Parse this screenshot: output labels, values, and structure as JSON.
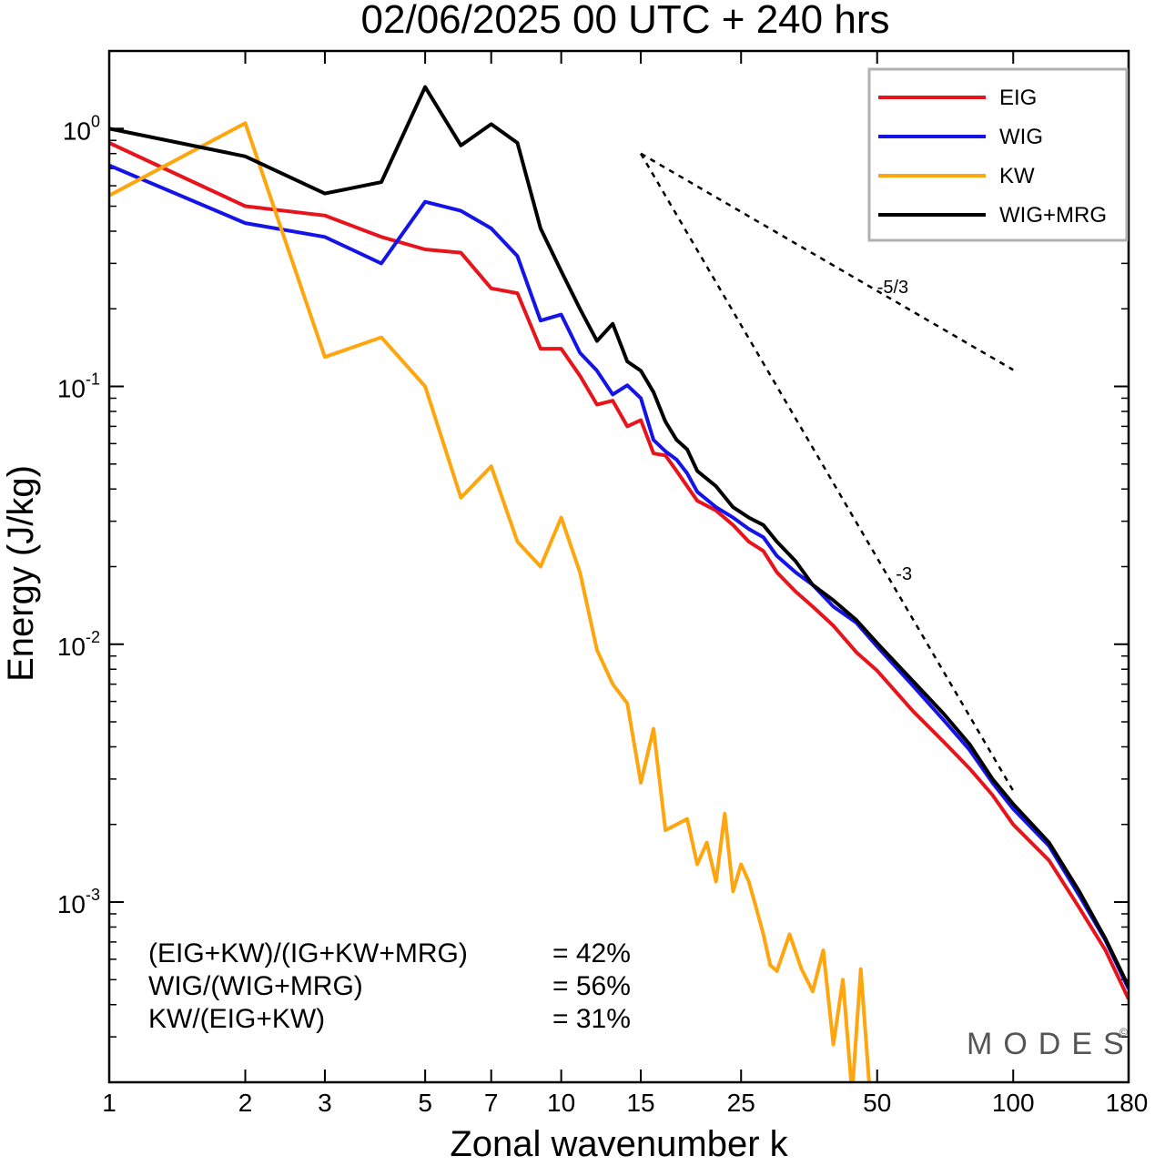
{
  "chart_data": {
    "type": "line",
    "title": "02/06/2025  00 UTC  + 240 hrs",
    "xlabel": "Zonal wavenumber k",
    "ylabel": "Energy (J/kg)",
    "xscale": "log",
    "yscale": "log",
    "xlim": [
      1,
      180
    ],
    "ylim": [
      0.0002,
      2.0
    ],
    "x_ticks": [
      {
        "v": 1,
        "label": "1"
      },
      {
        "v": 2,
        "label": "2"
      },
      {
        "v": 3,
        "label": "3"
      },
      {
        "v": 5,
        "label": "5"
      },
      {
        "v": 7,
        "label": "7"
      },
      {
        "v": 10,
        "label": "10"
      },
      {
        "v": 15,
        "label": "15"
      },
      {
        "v": 25,
        "label": "25"
      },
      {
        "v": 50,
        "label": "50"
      },
      {
        "v": 100,
        "label": "100"
      },
      {
        "v": 180,
        "label": "180"
      }
    ],
    "y_ticks": [
      {
        "v": 1,
        "base": "10",
        "exp": "0"
      },
      {
        "v": 0.1,
        "base": "10",
        "exp": "-1"
      },
      {
        "v": 0.01,
        "base": "10",
        "exp": "-2"
      },
      {
        "v": 0.001,
        "base": "10",
        "exp": "-3"
      }
    ],
    "legend_position": "top-right",
    "series": [
      {
        "name": "EIG",
        "color": "#e8141c",
        "x": [
          1,
          2,
          3,
          4,
          5,
          6,
          7,
          8,
          9,
          10,
          11,
          12,
          13,
          14,
          15,
          16,
          17,
          18,
          19,
          20,
          22,
          24,
          26,
          28,
          30,
          33,
          36,
          40,
          45,
          50,
          60,
          70,
          80,
          90,
          100,
          120,
          140,
          160,
          180
        ],
        "y": [
          0.88,
          0.5,
          0.46,
          0.38,
          0.34,
          0.33,
          0.24,
          0.23,
          0.14,
          0.14,
          0.11,
          0.085,
          0.088,
          0.07,
          0.074,
          0.055,
          0.054,
          0.047,
          0.041,
          0.036,
          0.033,
          0.029,
          0.025,
          0.023,
          0.019,
          0.016,
          0.014,
          0.0118,
          0.0093,
          0.0079,
          0.0055,
          0.0042,
          0.0033,
          0.0026,
          0.002,
          0.00145,
          0.00095,
          0.00065,
          0.00042
        ]
      },
      {
        "name": "WIG",
        "color": "#1414e8",
        "x": [
          1,
          2,
          3,
          4,
          5,
          6,
          7,
          8,
          9,
          10,
          11,
          12,
          13,
          14,
          15,
          16,
          17,
          18,
          19,
          20,
          22,
          24,
          26,
          28,
          30,
          33,
          36,
          40,
          45,
          50,
          60,
          70,
          80,
          90,
          100,
          120,
          140,
          160,
          180
        ],
        "y": [
          0.72,
          0.43,
          0.38,
          0.3,
          0.52,
          0.48,
          0.41,
          0.32,
          0.18,
          0.19,
          0.135,
          0.115,
          0.093,
          0.101,
          0.09,
          0.062,
          0.056,
          0.052,
          0.046,
          0.039,
          0.034,
          0.031,
          0.028,
          0.026,
          0.022,
          0.019,
          0.017,
          0.014,
          0.0121,
          0.0098,
          0.0069,
          0.0051,
          0.0039,
          0.0029,
          0.0023,
          0.00165,
          0.00106,
          0.00071,
          0.00046
        ]
      },
      {
        "name": "KW",
        "color": "#ffa50d",
        "x": [
          1,
          2,
          3,
          4,
          5,
          6,
          7,
          8,
          9,
          10,
          11,
          12,
          13,
          14,
          15,
          16,
          17,
          18,
          19,
          20,
          21,
          22,
          23,
          24,
          25,
          26,
          27,
          28,
          29,
          30,
          32,
          34,
          36,
          38,
          40,
          42,
          44,
          46,
          48,
          50
        ],
        "y": [
          0.55,
          1.05,
          0.13,
          0.155,
          0.1,
          0.037,
          0.049,
          0.025,
          0.02,
          0.031,
          0.019,
          0.0095,
          0.007,
          0.0059,
          0.0029,
          0.0047,
          0.0019,
          0.002,
          0.0021,
          0.0014,
          0.0017,
          0.0012,
          0.0022,
          0.0011,
          0.0014,
          0.0012,
          0.00095,
          0.00075,
          0.00057,
          0.00054,
          0.00075,
          0.00055,
          0.00045,
          0.00065,
          0.00028,
          0.0005,
          0.00018,
          0.00055,
          0.0002,
          0.00014
        ]
      },
      {
        "name": "WIG+MRG",
        "color": "#000000",
        "x": [
          1,
          2,
          3,
          4,
          5,
          6,
          7,
          8,
          9,
          10,
          11,
          12,
          13,
          14,
          15,
          16,
          17,
          18,
          19,
          20,
          22,
          24,
          26,
          28,
          30,
          33,
          36,
          40,
          45,
          50,
          60,
          70,
          80,
          90,
          100,
          120,
          140,
          160,
          180
        ],
        "y": [
          1.0,
          0.78,
          0.56,
          0.62,
          1.45,
          0.86,
          1.04,
          0.88,
          0.41,
          0.28,
          0.2,
          0.15,
          0.175,
          0.125,
          0.115,
          0.095,
          0.073,
          0.062,
          0.057,
          0.047,
          0.041,
          0.034,
          0.031,
          0.029,
          0.025,
          0.021,
          0.017,
          0.0148,
          0.0124,
          0.0101,
          0.0072,
          0.0054,
          0.0041,
          0.003,
          0.0024,
          0.0017,
          0.0011,
          0.00072,
          0.00047
        ]
      }
    ],
    "reference_lines": [
      {
        "label": "-5/3",
        "x": [
          15,
          100
        ],
        "y": [
          0.8,
          0.1159
        ],
        "label_x": 50,
        "label_y": 0.23
      },
      {
        "label": "-3",
        "x": [
          15,
          100
        ],
        "y": [
          0.8,
          0.0027
        ],
        "label_x": 55,
        "label_y": 0.0178
      }
    ],
    "annotations": [
      {
        "text": "(EIG+KW)/(IG+KW+MRG)",
        "value": "= 42%"
      },
      {
        "text": "WIG/(WIG+MRG)",
        "value": "= 56%"
      },
      {
        "text": "KW/(EIG+KW)",
        "value": "= 31%"
      }
    ],
    "watermark": "MODES",
    "watermark_mark": "©"
  }
}
